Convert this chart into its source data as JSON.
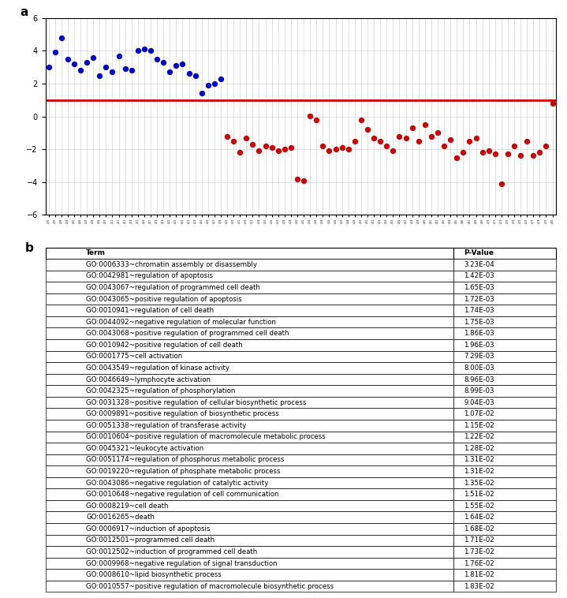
{
  "hc_x": [
    1,
    2,
    3,
    4,
    5,
    6,
    7,
    8,
    9,
    10,
    11,
    12,
    13,
    14,
    15,
    16,
    17,
    18,
    19,
    20,
    21,
    22,
    23,
    24,
    25,
    26,
    27,
    28
  ],
  "hc_y": [
    3.0,
    3.9,
    4.8,
    3.5,
    3.2,
    2.8,
    3.3,
    3.6,
    2.5,
    3.0,
    2.7,
    3.7,
    2.9,
    2.8,
    4.0,
    4.1,
    4.0,
    3.5,
    3.3,
    2.7,
    3.1,
    3.2,
    2.6,
    2.5,
    1.4,
    1.9,
    2.0,
    2.3
  ],
  "pd_x": [
    29,
    30,
    31,
    32,
    33,
    34,
    35,
    36,
    37,
    38,
    39,
    40,
    41,
    42,
    43,
    44,
    45,
    46,
    47,
    48,
    49,
    50,
    51,
    52,
    53,
    54,
    55,
    56,
    57,
    58,
    59,
    60,
    61,
    62,
    63,
    64,
    65,
    66,
    67,
    68,
    69,
    70,
    71,
    72,
    73,
    74,
    75,
    76,
    77,
    78,
    79,
    80
  ],
  "pd_y": [
    -1.2,
    -1.5,
    -2.2,
    -1.3,
    -1.7,
    -2.1,
    -1.8,
    -1.9,
    -2.1,
    -2.0,
    -1.9,
    -3.8,
    -3.9,
    0.05,
    -0.2,
    -1.8,
    -2.1,
    -2.0,
    -1.9,
    -2.0,
    -1.5,
    -0.2,
    -0.8,
    -1.3,
    -1.5,
    -1.8,
    -2.1,
    -1.2,
    -1.3,
    -0.7,
    -1.5,
    -0.5,
    -1.2,
    -1.0,
    -1.8,
    -1.4,
    -2.5,
    -2.2,
    -1.5,
    -1.3,
    -2.2,
    -2.1,
    -2.3,
    -4.1,
    -2.3,
    -1.8,
    -2.4,
    -1.5,
    -2.4,
    -2.2,
    -1.8,
    0.8
  ],
  "hline_y": 1.0,
  "ylim": [
    -6,
    6
  ],
  "yticks": [
    -6,
    -4,
    -2,
    0,
    2,
    4,
    6
  ],
  "hc_color": "#0000CC",
  "pd_color": "#CC0000",
  "hline_color": "#CC0000",
  "table_headers": [
    "Term",
    "P-Value"
  ],
  "table_terms": [
    "GO:0006333~chromatin assembly or disassembly",
    "GO:0042981~regulation of apoptosis",
    "GO:0043067~regulation of programmed cell death",
    "GO:0043065~positive regulation of apoptosis",
    "GO:0010941~regulation of cell death",
    "GO:0044092~negative regulation of molecular function",
    "GO:0043068~positive regulation of programmed cell death",
    "GO:0010942~positive regulation of cell death",
    "GO:0001775~cell activation",
    "GO:0043549~regulation of kinase activity",
    "GO:0046649~lymphocyte activation",
    "GO:0042325~regulation of phosphorylation",
    "GO:0031328~positive regulation of cellular biosynthetic process",
    "GO:0009891~positive regulation of biosynthetic process",
    "GO:0051338~regulation of transferase activity",
    "GO:0010604~positive regulation of macromolecule metabolic process",
    "GO:0045321~leukocyte activation",
    "GO:0051174~regulation of phosphorus metabolic process",
    "GO:0019220~regulation of phosphate metabolic process",
    "GO:0043086~negative regulation of catalytic activity",
    "GO:0010648~negative regulation of cell communication",
    "GO:0008219~cell death",
    "GO:0016265~death",
    "GO:0006917~induction of apoptosis",
    "GO:0012501~programmed cell death",
    "GO:0012502~induction of programmed cell death",
    "GO:0009968~negative regulation of signal transduction",
    "GO:0008610~lipid biosynthetic process",
    "GO:0010557~positive regulation of macromolecule biosynthetic process"
  ],
  "table_pvalues": [
    "3.23E-04",
    "1.42E-03",
    "1.65E-03",
    "1.72E-03",
    "1.74E-03",
    "1.75E-03",
    "1.86E-03",
    "1.96E-03",
    "7.29E-03",
    "8.00E-03",
    "8.96E-03",
    "8.99E-03",
    "9.04E-03",
    "1.07E-02",
    "1.15E-02",
    "1.22E-02",
    "1.28E-02",
    "1.31E-02",
    "1.31E-02",
    "1.35E-02",
    "1.51E-02",
    "1.55E-02",
    "1.64E-02",
    "1.68E-02",
    "1.71E-02",
    "1.73E-02",
    "1.76E-02",
    "1.81E-02",
    "1.83E-02"
  ]
}
